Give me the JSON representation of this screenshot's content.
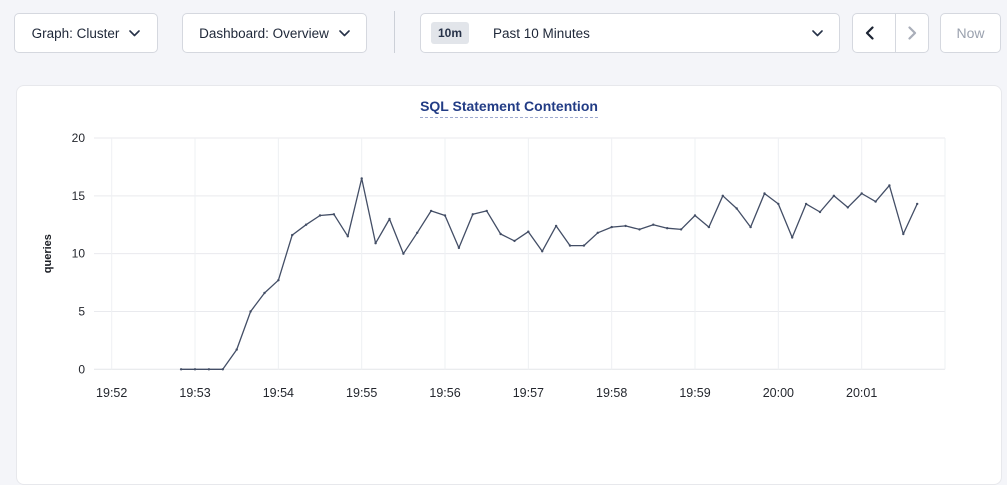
{
  "toolbar": {
    "graph_selector": {
      "label": "Graph: Cluster"
    },
    "dashboard_selector": {
      "label": "Dashboard: Overview"
    },
    "time_picker": {
      "badge": "10m",
      "label": "Past 10 Minutes"
    },
    "now_button": {
      "label": "Now"
    }
  },
  "chart": {
    "title": "SQL Statement Contention"
  },
  "chart_data": {
    "type": "line",
    "title": "SQL Statement Contention",
    "xlabel": "",
    "ylabel": "queries",
    "ylim": [
      0,
      20
    ],
    "xlim": [
      "19:52:00",
      "20:02:00"
    ],
    "grid": true,
    "legend": "none",
    "y_ticks": [
      0,
      5,
      10,
      15,
      20
    ],
    "x_ticks": [
      "19:52",
      "19:53",
      "19:54",
      "19:55",
      "19:56",
      "19:57",
      "19:58",
      "19:59",
      "20:00",
      "20:01"
    ],
    "series": [
      {
        "name": "SQL Statement Contention",
        "points": [
          [
            "19:52:50",
            0
          ],
          [
            "19:53:00",
            0
          ],
          [
            "19:53:10",
            0
          ],
          [
            "19:53:20",
            0
          ],
          [
            "19:53:30",
            1.7
          ],
          [
            "19:53:40",
            5
          ],
          [
            "19:53:50",
            6.6
          ],
          [
            "19:54:00",
            7.7
          ],
          [
            "19:54:10",
            11.6
          ],
          [
            "19:54:20",
            12.5
          ],
          [
            "19:54:30",
            13.3
          ],
          [
            "19:54:40",
            13.4
          ],
          [
            "19:54:50",
            11.5
          ],
          [
            "19:55:00",
            16.5
          ],
          [
            "19:55:10",
            10.9
          ],
          [
            "19:55:20",
            13
          ],
          [
            "19:55:30",
            10
          ],
          [
            "19:55:40",
            11.8
          ],
          [
            "19:55:50",
            13.7
          ],
          [
            "19:56:00",
            13.3
          ],
          [
            "19:56:10",
            10.5
          ],
          [
            "19:56:20",
            13.4
          ],
          [
            "19:56:30",
            13.7
          ],
          [
            "19:56:40",
            11.7
          ],
          [
            "19:56:50",
            11.1
          ],
          [
            "19:57:00",
            11.9
          ],
          [
            "19:57:10",
            10.2
          ],
          [
            "19:57:20",
            12.4
          ],
          [
            "19:57:30",
            10.7
          ],
          [
            "19:57:40",
            10.7
          ],
          [
            "19:57:50",
            11.8
          ],
          [
            "19:58:00",
            12.3
          ],
          [
            "19:58:10",
            12.4
          ],
          [
            "19:58:20",
            12.1
          ],
          [
            "19:58:30",
            12.5
          ],
          [
            "19:58:40",
            12.2
          ],
          [
            "19:58:50",
            12.1
          ],
          [
            "19:59:00",
            13.3
          ],
          [
            "19:59:10",
            12.3
          ],
          [
            "19:59:20",
            15
          ],
          [
            "19:59:30",
            13.9
          ],
          [
            "19:59:40",
            12.3
          ],
          [
            "19:59:50",
            15.2
          ],
          [
            "20:00:00",
            14.3
          ],
          [
            "20:00:10",
            11.4
          ],
          [
            "20:00:20",
            14.3
          ],
          [
            "20:00:30",
            13.6
          ],
          [
            "20:00:40",
            15
          ],
          [
            "20:00:50",
            14
          ],
          [
            "20:01:00",
            15.2
          ],
          [
            "20:01:10",
            14.5
          ],
          [
            "20:01:20",
            15.9
          ],
          [
            "20:01:30",
            11.7
          ],
          [
            "20:01:40",
            14.3
          ]
        ]
      }
    ]
  },
  "colors": {
    "page_bg": "#f4f5f9",
    "line": "#434e66",
    "grid_h": "#e9eaee",
    "grid_v": "#eef0f3",
    "axis_bottom": "#e4e5e9",
    "tick_text": "#24272e",
    "title": "#223c85",
    "enabled_icon": "#1c2433",
    "disabled_icon": "#a9aeb9"
  }
}
